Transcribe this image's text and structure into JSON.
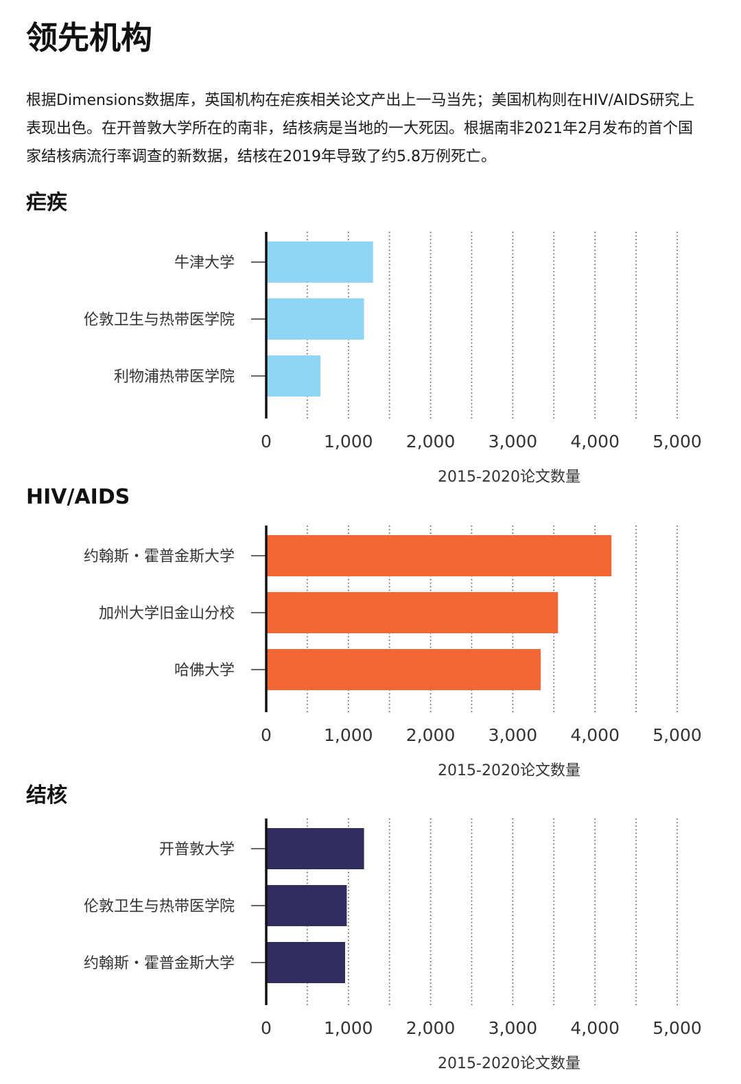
{
  "page": {
    "title": "领先机构",
    "intro": "根据Dimensions数据库，英国机构在疟疾相关论文产出上一马当先；美国机构则在HIV/AIDS研究上表现出色。在开普敦大学所在的南非，结核病是当地的一大死因。根据南非2021年2月发布的首个国家结核病流行率调查的新数据，结核在2019年导致了约5.8万例死亡。"
  },
  "chart_data": [
    {
      "type": "bar",
      "orientation": "horizontal",
      "title": "疟疾",
      "categories": [
        "牛津大学",
        "伦敦卫生与热带医学院",
        "利物浦热带医学院"
      ],
      "values": [
        1300,
        1190,
        660
      ],
      "xlabel": "2015-2020论文数量",
      "xlim": [
        0,
        5000
      ],
      "xticks": [
        "0",
        "1,000",
        "2,000",
        "3,000",
        "4,000",
        "5,000"
      ],
      "color": "#8fd6f5",
      "grid": true
    },
    {
      "type": "bar",
      "orientation": "horizontal",
      "title": "HIV/AIDS",
      "categories": [
        "约翰斯・霍普金斯大学",
        "加州大学旧金山分校",
        "哈佛大学"
      ],
      "values": [
        4200,
        3550,
        3340
      ],
      "xlabel": "2015-2020论文数量",
      "xlim": [
        0,
        5000
      ],
      "xticks": [
        "0",
        "1,000",
        "2,000",
        "3,000",
        "4,000",
        "5,000"
      ],
      "color": "#f26835",
      "grid": true
    },
    {
      "type": "bar",
      "orientation": "horizontal",
      "title": "结核",
      "categories": [
        "开普敦大学",
        "伦敦卫生与热带医学院",
        "约翰斯・霍普金斯大学"
      ],
      "values": [
        1190,
        980,
        960
      ],
      "xlabel": "2015-2020论文数量",
      "xlim": [
        0,
        5000
      ],
      "xticks": [
        "0",
        "1,000",
        "2,000",
        "3,000",
        "4,000",
        "5,000"
      ],
      "color": "#2e2d5e",
      "grid": true
    }
  ]
}
